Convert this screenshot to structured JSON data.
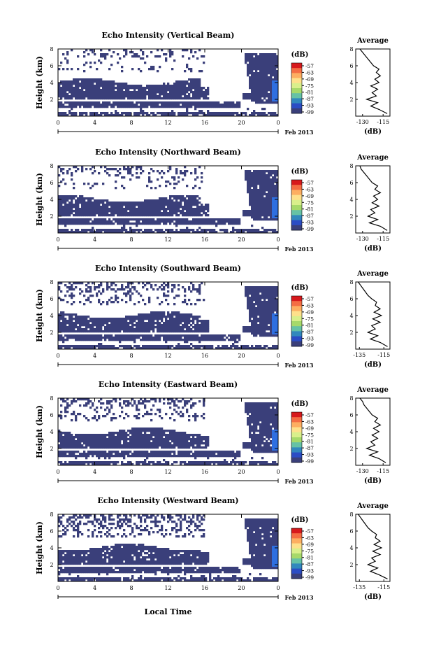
{
  "figure": {
    "x_axis_title": "Local Time",
    "date_label": "Feb 2013",
    "x_ticks": [
      "0",
      "4",
      "8",
      "12",
      "16",
      "20",
      "0"
    ],
    "y_ticks": [
      "2",
      "4",
      "6",
      "8"
    ],
    "y_label": "Height (km)",
    "colorbar_unit": "(dB)",
    "colorbar_ticks": [
      "-57",
      "-63",
      "-69",
      "-75",
      "-81",
      "-87",
      "-93",
      "-99"
    ],
    "colorbar_colors": [
      "#d7191c",
      "#f46d43",
      "#fdae61",
      "#fee08b",
      "#d9ef8b",
      "#a6d96a",
      "#66c2a5",
      "#3288bd",
      "#2b4cc4",
      "#3a3f7a"
    ],
    "average_title": "Average",
    "average_xlabel": "(dB)",
    "colors": {
      "low_echo": "#3a3f7a",
      "high_echo": "#2f6fe0",
      "no_data": "#ffffff"
    }
  },
  "chart_data": [
    {
      "type": "heatmap",
      "title": "Echo Intensity (Vertical Beam)",
      "xlabel": "",
      "ylabel": "Height (km)",
      "xlim": [
        0,
        24
      ],
      "ylim": [
        0,
        8
      ],
      "avg": {
        "ticks": [
          "-130",
          "-115"
        ],
        "xlim": [
          -135,
          -110
        ],
        "profile_height": [
          0.3,
          0.8,
          1.2,
          1.6,
          2.0,
          2.4,
          2.8,
          3.2,
          3.6,
          4.0,
          4.4,
          4.8,
          5.2,
          5.6,
          6.0,
          6.4,
          6.8,
          7.2,
          7.6,
          8.0
        ],
        "profile_value": [
          -112,
          -118,
          -124,
          -119,
          -127,
          -120,
          -123,
          -119,
          -124,
          -118,
          -121,
          -117,
          -120,
          -118,
          -122,
          -124,
          -126,
          -128,
          -130,
          -132
        ]
      }
    },
    {
      "type": "heatmap",
      "title": "Echo Intensity (Northward Beam)",
      "xlabel": "",
      "ylabel": "Height (km)",
      "xlim": [
        0,
        24
      ],
      "ylim": [
        0,
        8
      ],
      "avg": {
        "ticks": [
          "-130",
          "-115"
        ],
        "xlim": [
          -135,
          -110
        ],
        "profile_height": [
          0.3,
          0.8,
          1.2,
          1.6,
          2.0,
          2.4,
          2.8,
          3.2,
          3.6,
          4.0,
          4.4,
          4.8,
          5.2,
          5.6,
          6.0,
          6.4,
          6.8,
          7.2,
          7.6,
          8.0
        ],
        "profile_value": [
          -112,
          -117,
          -125,
          -119,
          -126,
          -121,
          -124,
          -118,
          -123,
          -119,
          -122,
          -117,
          -121,
          -119,
          -123,
          -125,
          -127,
          -129,
          -131,
          -132
        ]
      }
    },
    {
      "type": "heatmap",
      "title": "Echo Intensity (Southward Beam)",
      "xlabel": "",
      "ylabel": "Height (km)",
      "xlim": [
        0,
        24
      ],
      "ylim": [
        0,
        8
      ],
      "avg": {
        "ticks": [
          "-135",
          "-115"
        ],
        "xlim": [
          -138,
          -110
        ],
        "profile_height": [
          0.3,
          0.8,
          1.2,
          1.6,
          2.0,
          2.4,
          2.8,
          3.2,
          3.6,
          4.0,
          4.4,
          4.8,
          5.2,
          5.6,
          6.0,
          6.4,
          6.8,
          7.2,
          7.6,
          8.0
        ],
        "profile_value": [
          -112,
          -118,
          -126,
          -120,
          -128,
          -122,
          -125,
          -118,
          -124,
          -117,
          -123,
          -118,
          -122,
          -121,
          -125,
          -128,
          -130,
          -132,
          -134,
          -136
        ]
      }
    },
    {
      "type": "heatmap",
      "title": "Echo Intensity (Eastward Beam)",
      "xlabel": "",
      "ylabel": "Height (km)",
      "xlim": [
        0,
        24
      ],
      "ylim": [
        0,
        8
      ],
      "avg": {
        "ticks": [
          "-130",
          "-115"
        ],
        "xlim": [
          -135,
          -110
        ],
        "profile_height": [
          0.3,
          0.8,
          1.2,
          1.6,
          2.0,
          2.4,
          2.8,
          3.2,
          3.6,
          4.0,
          4.4,
          4.8,
          5.2,
          5.6,
          6.0,
          6.4,
          6.8,
          7.2,
          7.6,
          8.0
        ],
        "profile_value": [
          -113,
          -118,
          -125,
          -119,
          -127,
          -121,
          -124,
          -119,
          -123,
          -118,
          -122,
          -117,
          -121,
          -119,
          -123,
          -125,
          -127,
          -129,
          -130,
          -132
        ]
      }
    },
    {
      "type": "heatmap",
      "title": "Echo Intensity (Westward Beam)",
      "xlabel": "",
      "ylabel": "Height (km)",
      "xlim": [
        0,
        24
      ],
      "ylim": [
        0,
        8
      ],
      "avg": {
        "ticks": [
          "-135",
          "-115"
        ],
        "xlim": [
          -138,
          -110
        ],
        "profile_height": [
          0.3,
          0.8,
          1.2,
          1.6,
          2.0,
          2.4,
          2.8,
          3.2,
          3.6,
          4.0,
          4.4,
          4.8,
          5.2,
          5.6,
          6.0,
          6.4,
          6.8,
          7.2,
          7.6,
          8.0
        ],
        "profile_value": [
          -112,
          -119,
          -126,
          -120,
          -128,
          -122,
          -125,
          -118,
          -124,
          -117,
          -123,
          -118,
          -122,
          -121,
          -125,
          -128,
          -130,
          -132,
          -134,
          -136
        ]
      }
    }
  ]
}
